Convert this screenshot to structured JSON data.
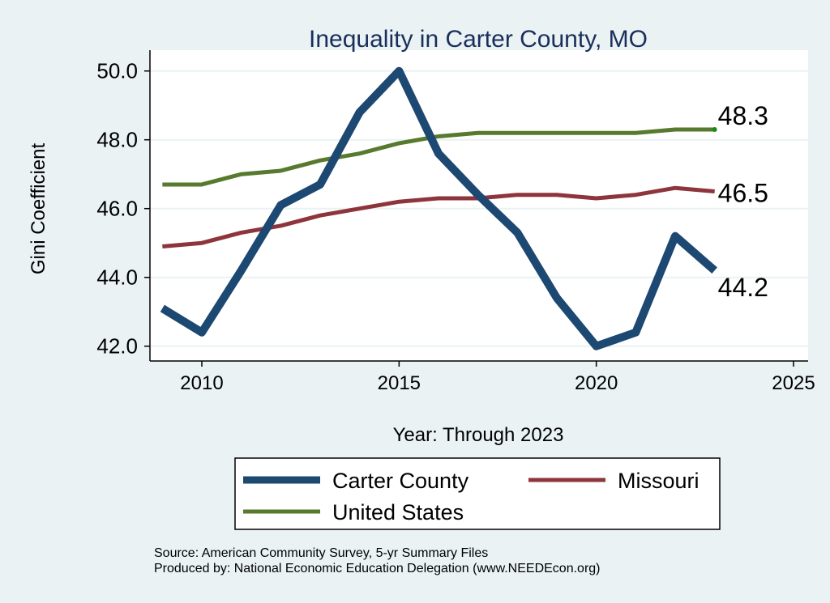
{
  "chart_data": {
    "type": "line",
    "title": "Inequality in Carter County, MO",
    "xlabel": "Year: Through 2023",
    "ylabel": "Gini Coefficient",
    "xlim": [
      2008.8,
      2025.4
    ],
    "ylim": [
      41.6,
      50.5
    ],
    "x_ticks": [
      2010,
      2015,
      2020,
      2025
    ],
    "x_tick_labels": [
      "2010",
      "2015",
      "2020",
      "2025"
    ],
    "y_ticks": [
      42,
      44,
      46,
      48,
      50
    ],
    "y_tick_labels": [
      "42.0",
      "44.0",
      "46.0",
      "48.0",
      "50.0"
    ],
    "grid": true,
    "legend_position": "bottom",
    "x": [
      2009,
      2010,
      2011,
      2012,
      2013,
      2014,
      2015,
      2016,
      2017,
      2018,
      2019,
      2020,
      2021,
      2022,
      2023
    ],
    "series": [
      {
        "name": "Carter County",
        "color": "#1c4872",
        "values": [
          43.1,
          42.4,
          44.2,
          46.1,
          46.7,
          48.8,
          50.0,
          47.6,
          46.4,
          45.3,
          43.4,
          42.0,
          42.4,
          45.2,
          44.2
        ],
        "end_label": "44.2"
      },
      {
        "name": "Missouri",
        "color": "#8e343c",
        "values": [
          44.9,
          45.0,
          45.3,
          45.5,
          45.8,
          46.0,
          46.2,
          46.3,
          46.3,
          46.4,
          46.4,
          46.3,
          46.4,
          46.6,
          46.5
        ],
        "end_label": "46.5"
      },
      {
        "name": "United States",
        "color": "#587a2e",
        "values": [
          46.7,
          46.7,
          47.0,
          47.1,
          47.4,
          47.6,
          47.9,
          48.1,
          48.2,
          48.2,
          48.2,
          48.2,
          48.2,
          48.3,
          48.3
        ],
        "end_label": "48.3"
      }
    ],
    "notes": [
      "Source: American Community Survey, 5-yr Summary Files",
      "Produced by: National Economic Education Delegation (www.NEEDEcon.org)"
    ]
  }
}
